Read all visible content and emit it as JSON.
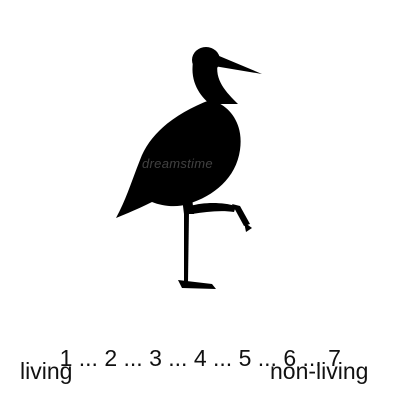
{
  "figure": {
    "subject_icon": "stork-silhouette-icon",
    "watermark": "dreamstime",
    "silhouette_color": "#000000"
  },
  "scale": {
    "points": [
      "1",
      "2",
      "3",
      "4",
      "5",
      "6",
      "7"
    ],
    "separator": " ... ",
    "left_anchor": "living",
    "right_anchor": "non-living"
  }
}
